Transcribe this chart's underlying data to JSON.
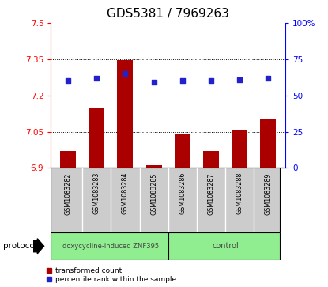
{
  "title": "GDS5381 / 7969263",
  "samples": [
    "GSM1083282",
    "GSM1083283",
    "GSM1083284",
    "GSM1083285",
    "GSM1083286",
    "GSM1083287",
    "GSM1083288",
    "GSM1083289"
  ],
  "red_values": [
    6.97,
    7.15,
    7.345,
    6.91,
    7.04,
    6.97,
    7.055,
    7.1
  ],
  "blue_values": [
    60,
    62,
    65,
    59,
    60,
    60,
    61,
    62
  ],
  "ylim_left": [
    6.9,
    7.5
  ],
  "ylim_right": [
    0,
    100
  ],
  "yticks_left": [
    6.9,
    7.05,
    7.2,
    7.35,
    7.5
  ],
  "ytick_labels_left": [
    "6.9",
    "7.05",
    "7.2",
    "7.35",
    "7.5"
  ],
  "yticks_right": [
    0,
    25,
    50,
    75,
    100
  ],
  "ytick_labels_right": [
    "0",
    "25",
    "50",
    "75",
    "100%"
  ],
  "bar_color": "#AA0000",
  "dot_color": "#2222CC",
  "bar_width": 0.55,
  "group1_label": "doxycycline-induced ZNF395",
  "group2_label": "control",
  "protocol_label": "protocol",
  "group_bg_color": "#90EE90",
  "tick_area_bg": "#CCCCCC",
  "legend_red_label": "transformed count",
  "legend_blue_label": "percentile rank within the sample",
  "title_fontsize": 11,
  "baseline": 6.9
}
